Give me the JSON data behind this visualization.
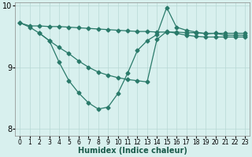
{
  "line1_x": [
    0,
    1,
    2,
    3,
    4,
    5,
    6,
    7,
    8,
    9,
    10,
    11,
    12,
    13,
    14,
    15,
    16,
    17,
    18,
    19,
    20,
    21,
    22,
    23
  ],
  "line1_y": [
    9.72,
    9.67,
    9.67,
    9.66,
    9.66,
    9.65,
    9.64,
    9.63,
    9.62,
    9.61,
    9.6,
    9.59,
    9.58,
    9.58,
    9.57,
    9.57,
    9.57,
    9.56,
    9.56,
    9.55,
    9.55,
    9.55,
    9.55,
    9.55
  ],
  "line2_x": [
    0,
    1,
    2,
    3,
    4,
    5,
    6,
    7,
    8,
    9,
    10,
    11,
    12,
    13,
    14,
    15,
    16,
    17,
    18,
    19,
    20,
    21,
    22,
    23
  ],
  "line2_y": [
    9.72,
    9.65,
    9.55,
    9.43,
    9.08,
    8.78,
    8.58,
    8.42,
    8.32,
    8.35,
    8.57,
    8.9,
    9.27,
    9.43,
    9.53,
    9.97,
    9.65,
    9.6,
    9.57,
    9.54,
    9.55,
    9.52,
    9.52,
    9.52
  ],
  "line3_x": [
    2,
    3,
    4,
    5,
    6,
    7,
    8,
    9,
    10,
    11,
    12,
    13,
    14,
    15,
    16,
    17,
    18,
    19,
    20,
    21,
    22,
    23
  ],
  "line3_y": [
    9.55,
    9.43,
    9.32,
    9.22,
    9.1,
    9.0,
    8.92,
    8.87,
    8.83,
    8.8,
    8.78,
    8.76,
    9.45,
    9.58,
    9.55,
    9.52,
    9.5,
    9.49,
    9.49,
    9.49,
    9.49,
    9.49
  ],
  "line_color": "#2a7a6a",
  "bg_color": "#d8f0ee",
  "grid_color": "#b8d8d5",
  "xlabel": "Humidex (Indice chaleur)",
  "xlim": [
    -0.5,
    23.5
  ],
  "ylim": [
    7.88,
    10.05
  ],
  "yticks": [
    8,
    9,
    10
  ],
  "xticks": [
    0,
    1,
    2,
    3,
    4,
    5,
    6,
    7,
    8,
    9,
    10,
    11,
    12,
    13,
    14,
    15,
    16,
    17,
    18,
    19,
    20,
    21,
    22,
    23
  ],
  "marker": "D",
  "markersize": 2.5
}
